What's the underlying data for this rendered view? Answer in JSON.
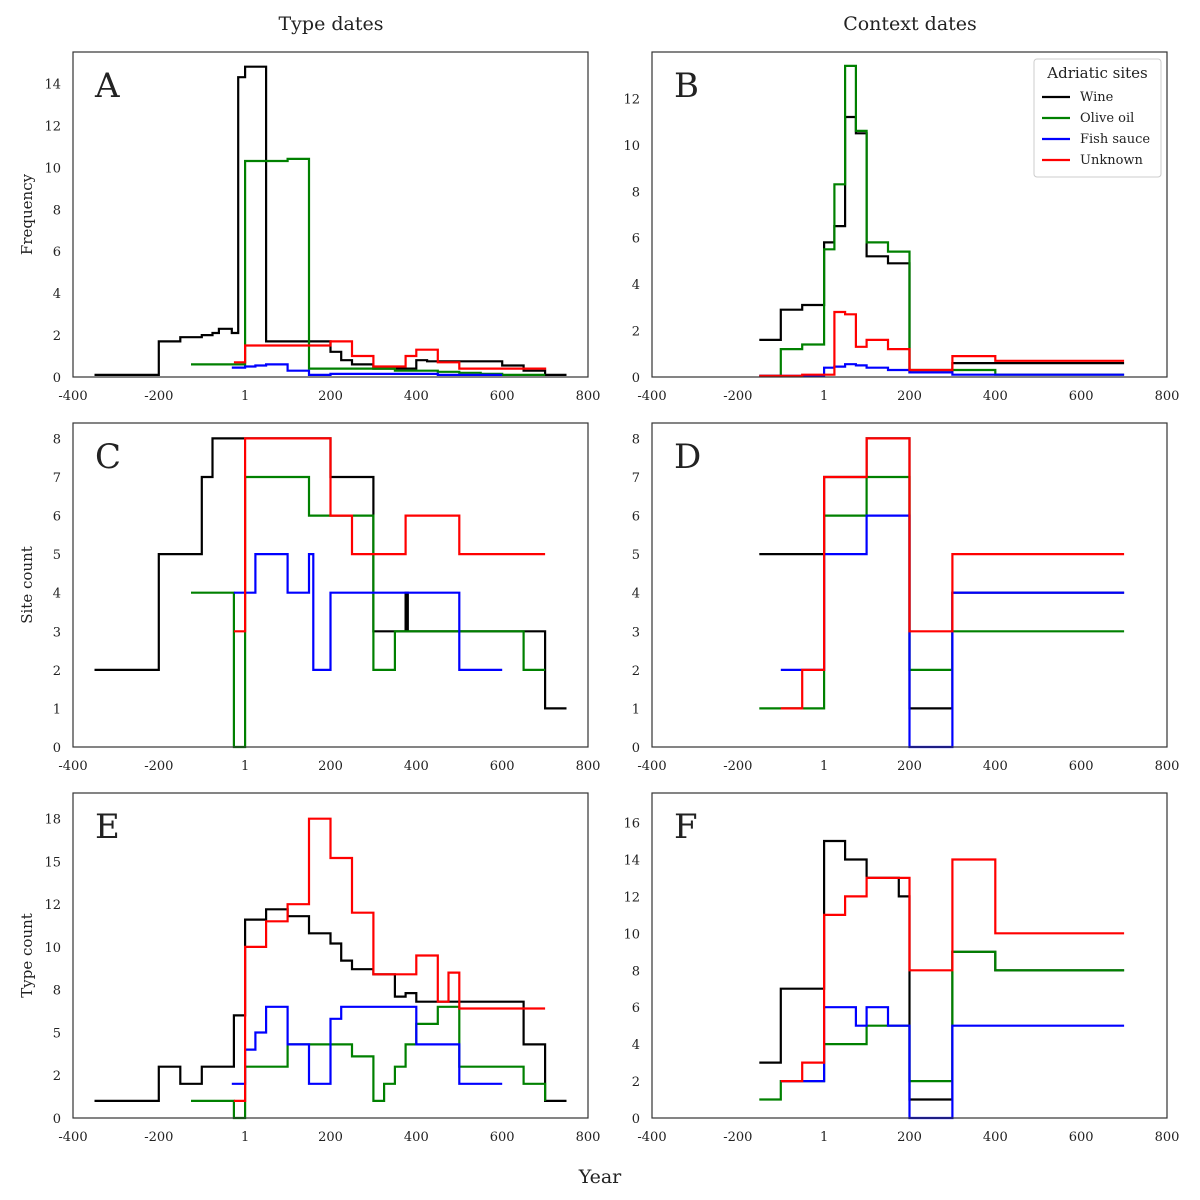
{
  "figure": {
    "columns": [
      "Type dates",
      "Context dates"
    ],
    "xlabel": "Year"
  },
  "colors": {
    "Wine": "#000000",
    "Olive oil": "#008000",
    "Fish sauce": "#0000ff",
    "Unknown": "#ff0000"
  },
  "legend": {
    "title": "Adriatic sites",
    "placement": "upper-right of panel B",
    "entries": [
      "Wine",
      "Olive oil",
      "Fish sauce",
      "Unknown"
    ]
  },
  "chart_data": [
    {
      "panel": "A",
      "type": "line",
      "step": true,
      "column": "Type dates",
      "ylabel": "Frequency",
      "xlim": [
        -400,
        800
      ],
      "ylim": [
        0,
        15.5
      ],
      "xticks": [
        -400,
        -200,
        1,
        200,
        400,
        600,
        800
      ],
      "xticklabels": [
        "-400",
        "-200",
        "1",
        "200",
        "400",
        "600",
        "800"
      ],
      "yticks": [
        0,
        2,
        4,
        6,
        8,
        10,
        12,
        14
      ],
      "yticklabels": [
        "0",
        "2",
        "4",
        "6",
        "8",
        "10",
        "12",
        "14"
      ],
      "series": [
        {
          "name": "Wine",
          "x": [
            -350,
            -200,
            -150,
            -100,
            -75,
            -60,
            -30,
            -15,
            1,
            50,
            200,
            225,
            250,
            300,
            350,
            400,
            425,
            450,
            500,
            550,
            600,
            650,
            700,
            750
          ],
          "y": [
            0.1,
            1.7,
            1.9,
            2.0,
            2.1,
            2.3,
            2.1,
            14.3,
            14.8,
            1.7,
            1.2,
            0.8,
            0.6,
            0.4,
            0.4,
            0.8,
            0.75,
            0.75,
            0.75,
            0.75,
            0.55,
            0.3,
            0.1,
            0.1
          ]
        },
        {
          "name": "Olive oil",
          "x": [
            -125,
            -25,
            1,
            100,
            150,
            200,
            350,
            450,
            500,
            550,
            600,
            650,
            700
          ],
          "y": [
            0.6,
            0.6,
            10.3,
            10.4,
            0.4,
            0.4,
            0.3,
            0.25,
            0.2,
            0.15,
            0.1,
            0.1,
            0.1
          ]
        },
        {
          "name": "Fish sauce",
          "x": [
            -30,
            1,
            25,
            50,
            100,
            150,
            200,
            350,
            450,
            500,
            600
          ],
          "y": [
            0.45,
            0.5,
            0.55,
            0.6,
            0.3,
            0.1,
            0.15,
            0.15,
            0.1,
            0.1,
            0.1
          ]
        },
        {
          "name": "Unknown",
          "x": [
            -25,
            1,
            150,
            200,
            250,
            300,
            375,
            400,
            450,
            500,
            700
          ],
          "y": [
            0.7,
            1.5,
            1.5,
            1.7,
            1.0,
            0.5,
            1.0,
            1.3,
            0.7,
            0.4,
            0.35
          ]
        }
      ]
    },
    {
      "panel": "B",
      "type": "line",
      "step": true,
      "column": "Context dates",
      "ylabel": "",
      "xlim": [
        -400,
        800
      ],
      "ylim": [
        0,
        14
      ],
      "xticks": [
        -400,
        -200,
        1,
        200,
        400,
        600,
        800
      ],
      "xticklabels": [
        "-400",
        "-200",
        "1",
        "200",
        "400",
        "600",
        "800"
      ],
      "yticks": [
        0,
        2,
        4,
        6,
        8,
        10,
        12
      ],
      "yticklabels": [
        "0",
        "2",
        "4",
        "6",
        "8",
        "10",
        "12"
      ],
      "series": [
        {
          "name": "Wine",
          "x": [
            -150,
            -100,
            -50,
            1,
            25,
            50,
            75,
            100,
            150,
            200,
            300,
            700
          ],
          "y": [
            1.6,
            2.9,
            3.1,
            5.8,
            6.5,
            11.2,
            10.5,
            5.2,
            4.9,
            0.2,
            0.6,
            0.6
          ]
        },
        {
          "name": "Olive oil",
          "x": [
            -150,
            -100,
            -50,
            1,
            25,
            50,
            75,
            100,
            150,
            200,
            300,
            400,
            700
          ],
          "y": [
            0.05,
            1.2,
            1.4,
            5.5,
            8.3,
            13.4,
            10.6,
            5.8,
            5.4,
            0.3,
            0.3,
            0.1,
            0.1
          ]
        },
        {
          "name": "Fish sauce",
          "x": [
            -150,
            1,
            25,
            50,
            75,
            100,
            150,
            200,
            300,
            400,
            700
          ],
          "y": [
            0.05,
            0.4,
            0.45,
            0.55,
            0.5,
            0.4,
            0.3,
            0.2,
            0.1,
            0.1,
            0.1
          ]
        },
        {
          "name": "Unknown",
          "x": [
            -150,
            -50,
            1,
            25,
            50,
            75,
            100,
            150,
            200,
            300,
            400,
            700
          ],
          "y": [
            0.05,
            0.1,
            0.1,
            2.8,
            2.7,
            1.3,
            1.6,
            1.2,
            0.3,
            0.9,
            0.7,
            0.7
          ]
        }
      ]
    },
    {
      "panel": "C",
      "type": "line",
      "step": true,
      "column": "Type dates",
      "ylabel": "Site count",
      "xlim": [
        -400,
        800
      ],
      "ylim": [
        0,
        8.4
      ],
      "xticks": [
        -400,
        -200,
        1,
        200,
        400,
        600,
        800
      ],
      "xticklabels": [
        "-400",
        "-200",
        "1",
        "200",
        "400",
        "600",
        "800"
      ],
      "yticks": [
        0,
        1,
        2,
        3,
        4,
        5,
        6,
        7,
        8
      ],
      "yticklabels": [
        "0",
        "1",
        "2",
        "3",
        "4",
        "5",
        "6",
        "7",
        "8"
      ],
      "series": [
        {
          "name": "Wine",
          "x": [
            -350,
            -200,
            -100,
            -75,
            1,
            50,
            200,
            300,
            310,
            375,
            380,
            600,
            700,
            750
          ],
          "y": [
            2,
            5,
            7,
            8,
            8,
            8,
            7,
            3,
            3,
            4,
            3,
            3,
            1,
            1
          ]
        },
        {
          "name": "Olive oil",
          "x": [
            -125,
            -25,
            1,
            150,
            200,
            300,
            350,
            375,
            500,
            650,
            700
          ],
          "y": [
            4,
            0,
            7,
            6,
            6,
            2,
            3,
            3,
            3,
            2,
            2
          ]
        },
        {
          "name": "Fish sauce",
          "x": [
            -25,
            1,
            25,
            100,
            150,
            160,
            200,
            500,
            600
          ],
          "y": [
            4,
            4,
            5,
            4,
            5,
            2,
            4,
            2,
            2
          ]
        },
        {
          "name": "Unknown",
          "x": [
            -25,
            1,
            200,
            250,
            375,
            500,
            700
          ],
          "y": [
            3,
            8,
            6,
            5,
            6,
            5,
            5
          ]
        }
      ]
    },
    {
      "panel": "D",
      "type": "line",
      "step": true,
      "column": "Context dates",
      "ylabel": "",
      "xlim": [
        -400,
        800
      ],
      "ylim": [
        0,
        8.4
      ],
      "xticks": [
        -400,
        -200,
        1,
        200,
        400,
        600,
        800
      ],
      "xticklabels": [
        "-400",
        "-200",
        "1",
        "200",
        "400",
        "600",
        "800"
      ],
      "yticks": [
        0,
        1,
        2,
        3,
        4,
        5,
        6,
        7,
        8
      ],
      "yticklabels": [
        "0",
        "1",
        "2",
        "3",
        "4",
        "5",
        "6",
        "7",
        "8"
      ],
      "series": [
        {
          "name": "Wine",
          "x": [
            -150,
            1,
            50,
            100,
            200,
            300,
            700
          ],
          "y": [
            5,
            7,
            7,
            8,
            1,
            4,
            4
          ]
        },
        {
          "name": "Olive oil",
          "x": [
            -150,
            1,
            100,
            200,
            300,
            700
          ],
          "y": [
            1,
            6,
            7,
            2,
            3,
            3
          ]
        },
        {
          "name": "Fish sauce",
          "x": [
            -100,
            -50,
            1,
            100,
            200,
            300,
            700
          ],
          "y": [
            2,
            2,
            5,
            6,
            0,
            4,
            4
          ]
        },
        {
          "name": "Unknown",
          "x": [
            -100,
            -50,
            1,
            100,
            200,
            300,
            700
          ],
          "y": [
            1,
            2,
            7,
            8,
            3,
            5,
            5
          ]
        }
      ]
    },
    {
      "panel": "E",
      "type": "line",
      "step": true,
      "column": "Type dates",
      "ylabel": "Type count",
      "xlim": [
        -400,
        800
      ],
      "ylim": [
        0,
        19
      ],
      "xticks": [
        -400,
        -200,
        1,
        200,
        400,
        600,
        800
      ],
      "xticklabels": [
        "-400",
        "-200",
        "1",
        "200",
        "400",
        "600",
        "800"
      ],
      "yticks": [
        0,
        2.5,
        5,
        7.5,
        10,
        12.5,
        15,
        17.5
      ],
      "yticklabels": [
        "0",
        "2",
        "5",
        "8",
        "10",
        "12",
        "15",
        "18"
      ],
      "series": [
        {
          "name": "Wine",
          "x": [
            -350,
            -200,
            -150,
            -100,
            -25,
            1,
            50,
            100,
            150,
            200,
            225,
            250,
            275,
            300,
            350,
            375,
            400,
            450,
            500,
            550,
            600,
            650,
            700,
            750
          ],
          "y": [
            1,
            3,
            2,
            3,
            6,
            11.6,
            12.2,
            11.8,
            10.8,
            10.2,
            9.2,
            8.7,
            8.7,
            8.4,
            7.1,
            7.3,
            6.8,
            6.8,
            6.8,
            6.8,
            6.8,
            4.3,
            1,
            1
          ]
        },
        {
          "name": "Olive oil",
          "x": [
            -125,
            -25,
            1,
            100,
            150,
            250,
            300,
            325,
            350,
            375,
            400,
            450,
            500,
            550,
            650,
            700
          ],
          "y": [
            1,
            0,
            3,
            4.3,
            4.3,
            3.6,
            1,
            2,
            3,
            4.3,
            5.5,
            6.5,
            3,
            3,
            2,
            1
          ]
        },
        {
          "name": "Fish sauce",
          "x": [
            -30,
            1,
            25,
            50,
            100,
            150,
            200,
            225,
            250,
            350,
            400,
            500,
            600
          ],
          "y": [
            2,
            4,
            5,
            6.5,
            4.3,
            2,
            5.8,
            6.5,
            6.5,
            6.5,
            4.3,
            2,
            2
          ]
        },
        {
          "name": "Unknown",
          "x": [
            -25,
            1,
            50,
            100,
            150,
            200,
            250,
            300,
            375,
            400,
            450,
            475,
            500,
            700
          ],
          "y": [
            1,
            10,
            11.5,
            12.5,
            17.5,
            15.2,
            12,
            8.4,
            8.4,
            9.5,
            6.8,
            8.5,
            6.4,
            6.4
          ]
        }
      ]
    },
    {
      "panel": "F",
      "type": "line",
      "step": true,
      "column": "Context dates",
      "ylabel": "",
      "xlim": [
        -400,
        800
      ],
      "ylim": [
        0,
        17.6
      ],
      "xticks": [
        -400,
        -200,
        1,
        200,
        400,
        600,
        800
      ],
      "xticklabels": [
        "-400",
        "-200",
        "1",
        "200",
        "400",
        "600",
        "800"
      ],
      "yticks": [
        0,
        2,
        4,
        6,
        8,
        10,
        12,
        14,
        16
      ],
      "yticklabels": [
        "0",
        "2",
        "4",
        "6",
        "8",
        "10",
        "12",
        "14",
        "16"
      ],
      "series": [
        {
          "name": "Wine",
          "x": [
            -150,
            -100,
            1,
            50,
            100,
            175,
            200,
            300,
            400,
            700
          ],
          "y": [
            3,
            7,
            15,
            14,
            13,
            12,
            1,
            9,
            8,
            8
          ]
        },
        {
          "name": "Olive oil",
          "x": [
            -150,
            -100,
            1,
            100,
            200,
            300,
            400,
            700
          ],
          "y": [
            1,
            2,
            4,
            5,
            2,
            9,
            8,
            8
          ]
        },
        {
          "name": "Fish sauce",
          "x": [
            -100,
            -50,
            1,
            75,
            100,
            150,
            200,
            300,
            700
          ],
          "y": [
            2,
            2,
            6,
            5,
            6,
            5,
            0,
            5,
            5
          ]
        },
        {
          "name": "Unknown",
          "x": [
            -100,
            -50,
            1,
            50,
            100,
            200,
            300,
            400,
            700
          ],
          "y": [
            2,
            3,
            11,
            12,
            13,
            8,
            14,
            10,
            10
          ]
        }
      ]
    }
  ]
}
